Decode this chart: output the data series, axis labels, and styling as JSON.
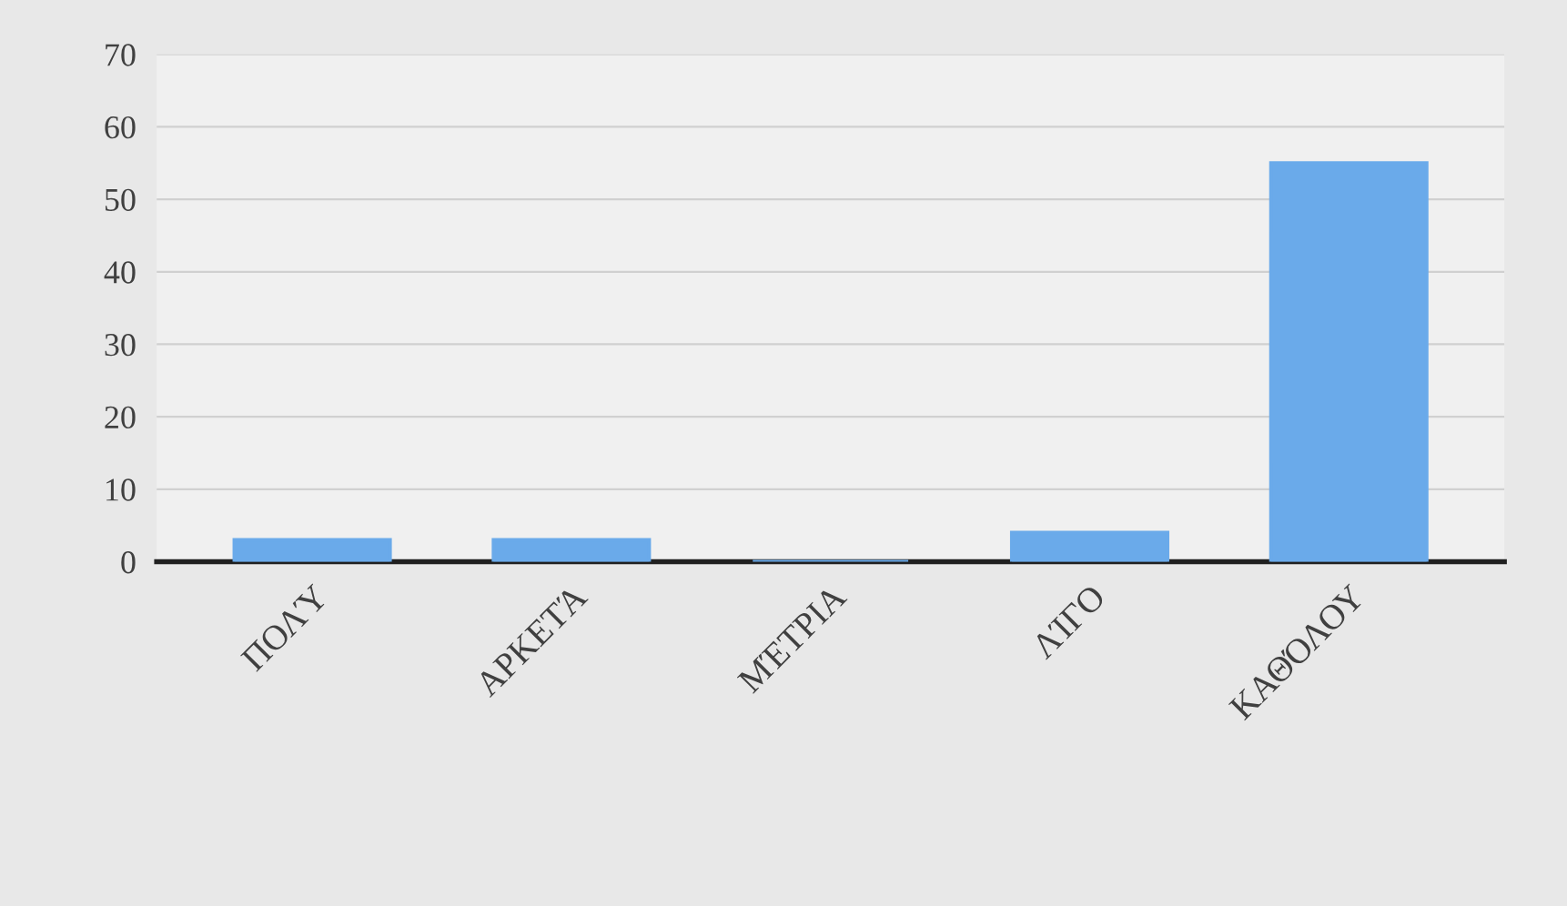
{
  "chart_data": {
    "type": "bar",
    "categories": [
      "ΠΟΛΎ",
      "ΑΡΚΕΤΆ",
      "ΜΈΤΡΙΑ",
      "ΛΊΓΟ",
      "ΚΑΘΌΛΟΥ"
    ],
    "values": [
      3,
      3,
      0,
      4,
      55
    ],
    "color": "#6aaaea",
    "ylim": [
      0,
      70
    ],
    "yticks": [
      0,
      10,
      20,
      30,
      40,
      50,
      60,
      70
    ],
    "grid": "y"
  }
}
